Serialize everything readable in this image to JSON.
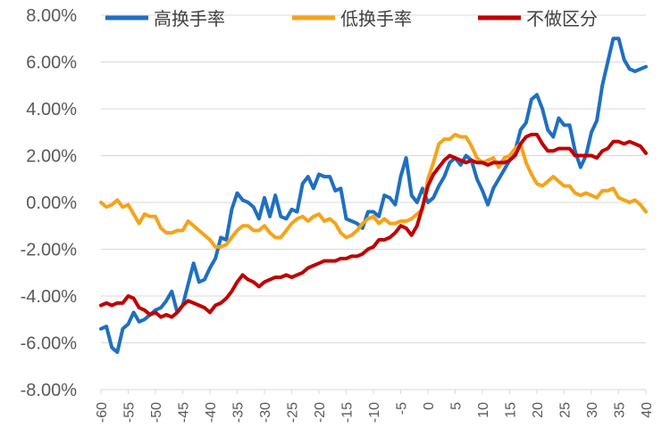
{
  "chart_data": {
    "type": "line",
    "title": "",
    "xlabel": "",
    "ylabel": "",
    "ylim": [
      -0.08,
      0.08
    ],
    "xlim": [
      -60,
      40
    ],
    "y_ticks": [
      {
        "value": 0.08,
        "label": "8.00%"
      },
      {
        "value": 0.06,
        "label": "6.00%"
      },
      {
        "value": 0.04,
        "label": "4.00%"
      },
      {
        "value": 0.02,
        "label": "2.00%"
      },
      {
        "value": 0.0,
        "label": "0.00%"
      },
      {
        "value": -0.02,
        "label": "-2.00%"
      },
      {
        "value": -0.04,
        "label": "-4.00%"
      },
      {
        "value": -0.06,
        "label": "-6.00%"
      },
      {
        "value": -0.08,
        "label": "-8.00%"
      }
    ],
    "x_ticks": [
      -60,
      -55,
      -50,
      -45,
      -40,
      -35,
      -30,
      -25,
      -20,
      -15,
      -10,
      -5,
      0,
      5,
      10,
      15,
      20,
      25,
      30,
      35,
      40
    ],
    "legend_position": "top",
    "series": [
      {
        "name": "高换手率",
        "color": "#1F6FC1",
        "points": [
          [
            -60,
            -0.054
          ],
          [
            -59,
            -0.053
          ],
          [
            -58,
            -0.062
          ],
          [
            -57,
            -0.064
          ],
          [
            -56,
            -0.054
          ],
          [
            -55,
            -0.052
          ],
          [
            -54,
            -0.047
          ],
          [
            -53,
            -0.051
          ],
          [
            -52,
            -0.05
          ],
          [
            -51,
            -0.048
          ],
          [
            -50,
            -0.046
          ],
          [
            -49,
            -0.045
          ],
          [
            -48,
            -0.042
          ],
          [
            -47,
            -0.038
          ],
          [
            -46,
            -0.047
          ],
          [
            -45,
            -0.044
          ],
          [
            -44,
            -0.035
          ],
          [
            -43,
            -0.026
          ],
          [
            -42,
            -0.034
          ],
          [
            -41,
            -0.033
          ],
          [
            -40,
            -0.028
          ],
          [
            -39,
            -0.024
          ],
          [
            -38,
            -0.015
          ],
          [
            -37,
            -0.016
          ],
          [
            -36,
            -0.003
          ],
          [
            -35,
            0.004
          ],
          [
            -34,
            0.001
          ],
          [
            -33,
            0.0
          ],
          [
            -32,
            -0.002
          ],
          [
            -31,
            -0.007
          ],
          [
            -30,
            0.002
          ],
          [
            -29,
            -0.006
          ],
          [
            -28,
            0.003
          ],
          [
            -27,
            -0.006
          ],
          [
            -26,
            -0.007
          ],
          [
            -25,
            -0.003
          ],
          [
            -24,
            -0.004
          ],
          [
            -23,
            0.008
          ],
          [
            -22,
            0.011
          ],
          [
            -21,
            0.006
          ],
          [
            -20,
            0.012
          ],
          [
            -19,
            0.011
          ],
          [
            -18,
            0.011
          ],
          [
            -17,
            0.005
          ],
          [
            -16,
            0.006
          ],
          [
            -15,
            -0.007
          ],
          [
            -14,
            -0.008
          ],
          [
            -13,
            -0.009
          ],
          [
            -12,
            -0.011
          ],
          [
            -11,
            -0.004
          ],
          [
            -10,
            -0.004
          ],
          [
            -9,
            -0.006
          ],
          [
            -8,
            0.003
          ],
          [
            -7,
            0.002
          ],
          [
            -6,
            -0.001
          ],
          [
            -5,
            0.011
          ],
          [
            -4,
            0.019
          ],
          [
            -3,
            0.003
          ],
          [
            -2,
            0.0
          ],
          [
            -1,
            0.006
          ],
          [
            0,
            0.0
          ],
          [
            1,
            0.002
          ],
          [
            2,
            0.007
          ],
          [
            3,
            0.011
          ],
          [
            4,
            0.017
          ],
          [
            5,
            0.019
          ],
          [
            6,
            0.016
          ],
          [
            7,
            0.02
          ],
          [
            8,
            0.018
          ],
          [
            9,
            0.01
          ],
          [
            10,
            0.005
          ],
          [
            11,
            -0.001
          ],
          [
            12,
            0.006
          ],
          [
            13,
            0.01
          ],
          [
            14,
            0.014
          ],
          [
            15,
            0.018
          ],
          [
            16,
            0.022
          ],
          [
            17,
            0.031
          ],
          [
            18,
            0.034
          ],
          [
            19,
            0.044
          ],
          [
            20,
            0.046
          ],
          [
            21,
            0.04
          ],
          [
            22,
            0.031
          ],
          [
            23,
            0.028
          ],
          [
            24,
            0.036
          ],
          [
            25,
            0.033
          ],
          [
            26,
            0.033
          ],
          [
            27,
            0.022
          ],
          [
            28,
            0.015
          ],
          [
            29,
            0.02
          ],
          [
            30,
            0.03
          ],
          [
            31,
            0.035
          ],
          [
            32,
            0.05
          ],
          [
            33,
            0.06
          ],
          [
            34,
            0.07
          ],
          [
            35,
            0.07
          ],
          [
            36,
            0.061
          ],
          [
            37,
            0.057
          ],
          [
            38,
            0.056
          ],
          [
            39,
            0.057
          ],
          [
            40,
            0.058
          ]
        ]
      },
      {
        "name": "低换手率",
        "color": "#F5A31A",
        "points": [
          [
            -60,
            0.0
          ],
          [
            -59,
            -0.002
          ],
          [
            -58,
            -0.001
          ],
          [
            -57,
            0.001
          ],
          [
            -56,
            -0.002
          ],
          [
            -55,
            -0.001
          ],
          [
            -54,
            -0.005
          ],
          [
            -53,
            -0.009
          ],
          [
            -52,
            -0.005
          ],
          [
            -51,
            -0.006
          ],
          [
            -50,
            -0.006
          ],
          [
            -49,
            -0.011
          ],
          [
            -48,
            -0.013
          ],
          [
            -47,
            -0.013
          ],
          [
            -46,
            -0.012
          ],
          [
            -45,
            -0.012
          ],
          [
            -44,
            -0.008
          ],
          [
            -43,
            -0.01
          ],
          [
            -42,
            -0.012
          ],
          [
            -41,
            -0.014
          ],
          [
            -40,
            -0.016
          ],
          [
            -39,
            -0.019
          ],
          [
            -38,
            -0.019
          ],
          [
            -37,
            -0.018
          ],
          [
            -36,
            -0.015
          ],
          [
            -35,
            -0.012
          ],
          [
            -34,
            -0.01
          ],
          [
            -33,
            -0.01
          ],
          [
            -32,
            -0.012
          ],
          [
            -31,
            -0.012
          ],
          [
            -30,
            -0.01
          ],
          [
            -29,
            -0.013
          ],
          [
            -28,
            -0.015
          ],
          [
            -27,
            -0.015
          ],
          [
            -26,
            -0.012
          ],
          [
            -25,
            -0.009
          ],
          [
            -24,
            -0.007
          ],
          [
            -23,
            -0.006
          ],
          [
            -22,
            -0.008
          ],
          [
            -21,
            -0.006
          ],
          [
            -20,
            -0.005
          ],
          [
            -19,
            -0.008
          ],
          [
            -18,
            -0.007
          ],
          [
            -17,
            -0.009
          ],
          [
            -16,
            -0.013
          ],
          [
            -15,
            -0.015
          ],
          [
            -14,
            -0.014
          ],
          [
            -13,
            -0.012
          ],
          [
            -12,
            -0.009
          ],
          [
            -11,
            -0.007
          ],
          [
            -10,
            -0.006
          ],
          [
            -9,
            -0.009
          ],
          [
            -8,
            -0.007
          ],
          [
            -7,
            -0.009
          ],
          [
            -6,
            -0.009
          ],
          [
            -5,
            -0.008
          ],
          [
            -4,
            -0.008
          ],
          [
            -3,
            -0.007
          ],
          [
            -2,
            -0.005
          ],
          [
            -1,
            -0.003
          ],
          [
            0,
            0.01
          ],
          [
            1,
            0.017
          ],
          [
            2,
            0.025
          ],
          [
            3,
            0.027
          ],
          [
            4,
            0.027
          ],
          [
            5,
            0.029
          ],
          [
            6,
            0.028
          ],
          [
            7,
            0.028
          ],
          [
            8,
            0.024
          ],
          [
            9,
            0.019
          ],
          [
            10,
            0.017
          ],
          [
            11,
            0.018
          ],
          [
            12,
            0.019
          ],
          [
            13,
            0.015
          ],
          [
            14,
            0.019
          ],
          [
            15,
            0.02
          ],
          [
            16,
            0.023
          ],
          [
            17,
            0.025
          ],
          [
            18,
            0.017
          ],
          [
            19,
            0.012
          ],
          [
            20,
            0.008
          ],
          [
            21,
            0.007
          ],
          [
            22,
            0.009
          ],
          [
            23,
            0.011
          ],
          [
            24,
            0.009
          ],
          [
            25,
            0.007
          ],
          [
            26,
            0.007
          ],
          [
            27,
            0.004
          ],
          [
            28,
            0.003
          ],
          [
            29,
            0.004
          ],
          [
            30,
            0.003
          ],
          [
            31,
            0.002
          ],
          [
            32,
            0.005
          ],
          [
            33,
            0.005
          ],
          [
            34,
            0.006
          ],
          [
            35,
            0.002
          ],
          [
            36,
            0.001
          ],
          [
            37,
            0.0
          ],
          [
            38,
            0.001
          ],
          [
            39,
            -0.001
          ],
          [
            40,
            -0.004
          ]
        ]
      },
      {
        "name": "不做区分",
        "color": "#C00000",
        "points": [
          [
            -60,
            -0.044
          ],
          [
            -59,
            -0.043
          ],
          [
            -58,
            -0.044
          ],
          [
            -57,
            -0.043
          ],
          [
            -56,
            -0.043
          ],
          [
            -55,
            -0.04
          ],
          [
            -54,
            -0.041
          ],
          [
            -53,
            -0.045
          ],
          [
            -52,
            -0.046
          ],
          [
            -51,
            -0.048
          ],
          [
            -50,
            -0.047
          ],
          [
            -49,
            -0.049
          ],
          [
            -48,
            -0.048
          ],
          [
            -47,
            -0.049
          ],
          [
            -46,
            -0.047
          ],
          [
            -45,
            -0.044
          ],
          [
            -44,
            -0.042
          ],
          [
            -43,
            -0.043
          ],
          [
            -42,
            -0.044
          ],
          [
            -41,
            -0.045
          ],
          [
            -40,
            -0.047
          ],
          [
            -39,
            -0.044
          ],
          [
            -38,
            -0.043
          ],
          [
            -37,
            -0.041
          ],
          [
            -36,
            -0.038
          ],
          [
            -35,
            -0.034
          ],
          [
            -34,
            -0.031
          ],
          [
            -33,
            -0.033
          ],
          [
            -32,
            -0.034
          ],
          [
            -31,
            -0.036
          ],
          [
            -30,
            -0.034
          ],
          [
            -29,
            -0.033
          ],
          [
            -28,
            -0.032
          ],
          [
            -27,
            -0.032
          ],
          [
            -26,
            -0.031
          ],
          [
            -25,
            -0.032
          ],
          [
            -24,
            -0.031
          ],
          [
            -23,
            -0.03
          ],
          [
            -22,
            -0.028
          ],
          [
            -21,
            -0.027
          ],
          [
            -20,
            -0.026
          ],
          [
            -19,
            -0.025
          ],
          [
            -18,
            -0.025
          ],
          [
            -17,
            -0.025
          ],
          [
            -16,
            -0.024
          ],
          [
            -15,
            -0.024
          ],
          [
            -14,
            -0.023
          ],
          [
            -13,
            -0.023
          ],
          [
            -12,
            -0.022
          ],
          [
            -11,
            -0.02
          ],
          [
            -10,
            -0.019
          ],
          [
            -9,
            -0.016
          ],
          [
            -8,
            -0.016
          ],
          [
            -7,
            -0.015
          ],
          [
            -6,
            -0.013
          ],
          [
            -5,
            -0.01
          ],
          [
            -4,
            -0.011
          ],
          [
            -3,
            -0.014
          ],
          [
            -2,
            -0.01
          ],
          [
            -1,
            -0.002
          ],
          [
            0,
            0.007
          ],
          [
            1,
            0.012
          ],
          [
            2,
            0.015
          ],
          [
            3,
            0.018
          ],
          [
            4,
            0.02
          ],
          [
            5,
            0.019
          ],
          [
            6,
            0.018
          ],
          [
            7,
            0.017
          ],
          [
            8,
            0.018
          ],
          [
            9,
            0.017
          ],
          [
            10,
            0.017
          ],
          [
            11,
            0.016
          ],
          [
            12,
            0.017
          ],
          [
            13,
            0.017
          ],
          [
            14,
            0.017
          ],
          [
            15,
            0.018
          ],
          [
            16,
            0.02
          ],
          [
            17,
            0.025
          ],
          [
            18,
            0.028
          ],
          [
            19,
            0.029
          ],
          [
            20,
            0.029
          ],
          [
            21,
            0.025
          ],
          [
            22,
            0.022
          ],
          [
            23,
            0.022
          ],
          [
            24,
            0.023
          ],
          [
            25,
            0.023
          ],
          [
            26,
            0.023
          ],
          [
            27,
            0.02
          ],
          [
            28,
            0.02
          ],
          [
            29,
            0.02
          ],
          [
            30,
            0.02
          ],
          [
            31,
            0.019
          ],
          [
            32,
            0.022
          ],
          [
            33,
            0.023
          ],
          [
            34,
            0.026
          ],
          [
            35,
            0.026
          ],
          [
            36,
            0.025
          ],
          [
            37,
            0.026
          ],
          [
            38,
            0.025
          ],
          [
            39,
            0.024
          ],
          [
            40,
            0.021
          ]
        ]
      }
    ]
  }
}
